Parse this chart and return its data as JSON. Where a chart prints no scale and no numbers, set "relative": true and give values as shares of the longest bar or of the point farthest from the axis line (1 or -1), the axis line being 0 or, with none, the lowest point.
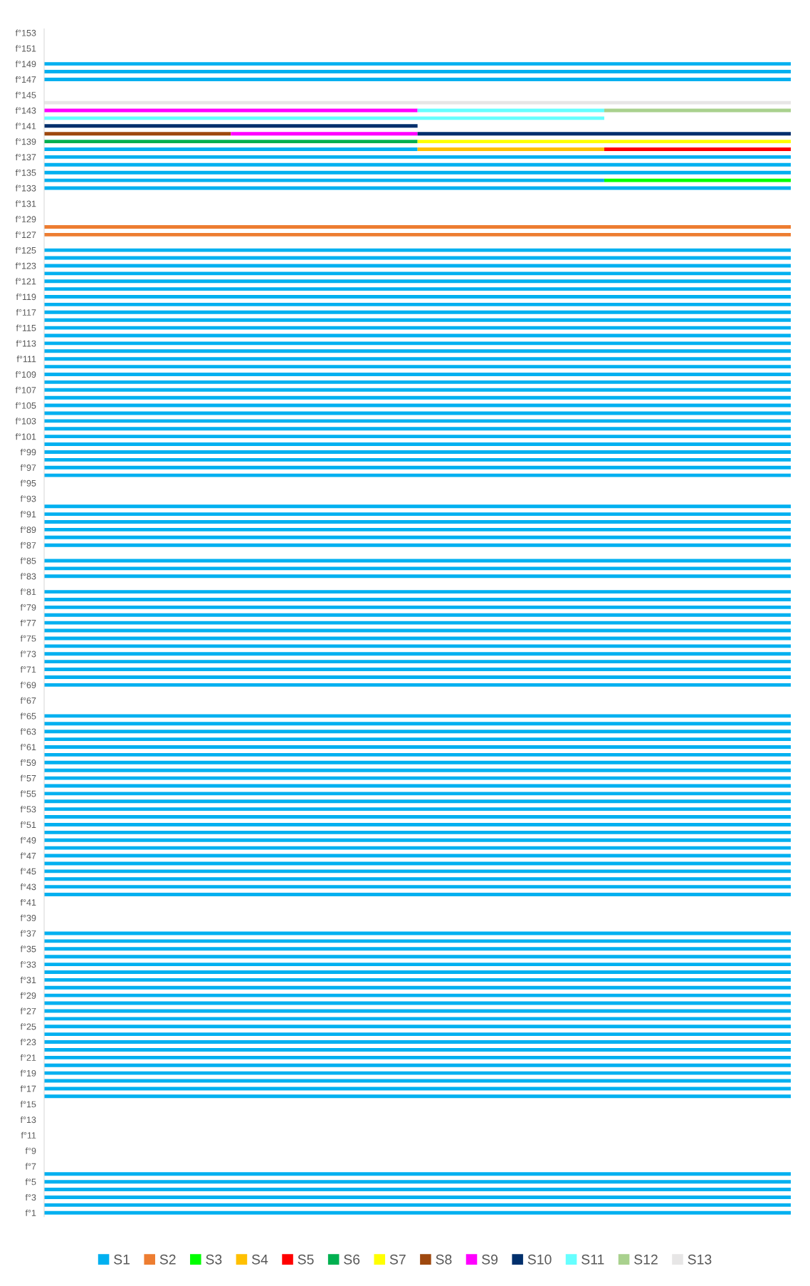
{
  "chart_data": {
    "type": "bar",
    "orientation": "horizontal",
    "stacked": true,
    "relative": true,
    "legend": "bottom",
    "grid": false,
    "categories": [
      "f°153",
      null,
      "f°151",
      null,
      "f°149",
      null,
      "f°147",
      null,
      "f°145",
      null,
      "f°143",
      null,
      "f°141",
      null,
      "f°139",
      null,
      "f°137",
      null,
      "f°135",
      null,
      "f°133",
      null,
      "f°131",
      null,
      "f°129",
      null,
      "f°127",
      null,
      "f°125",
      null,
      "f°123",
      null,
      "f°121",
      null,
      "f°119",
      null,
      "f°117",
      null,
      "f°115",
      null,
      "f°113",
      null,
      "f°111",
      null,
      "f°109",
      null,
      "f°107",
      null,
      "f°105",
      null,
      "f°103",
      null,
      "f°101",
      null,
      "f°99",
      null,
      "f°97",
      null,
      "f°95",
      null,
      "f°93",
      null,
      "f°91",
      null,
      "f°89",
      null,
      "f°87",
      null,
      "f°85",
      null,
      "f°83",
      null,
      "f°81",
      null,
      "f°79",
      null,
      "f°77",
      null,
      "f°75",
      null,
      "f°73",
      null,
      "f°71",
      null,
      "f°69",
      null,
      "f°67",
      null,
      "f°65",
      null,
      "f°63",
      null,
      "f°61",
      null,
      "f°59",
      null,
      "f°57",
      null,
      "f°55",
      null,
      "f°53",
      null,
      "f°51",
      null,
      "f°49",
      null,
      "f°47",
      null,
      "f°45",
      null,
      "f°43",
      null,
      "f°41",
      null,
      "f°39",
      null,
      "f°37",
      null,
      "f°35",
      null,
      "f°33",
      null,
      "f°31",
      null,
      "f°29",
      null,
      "f°27",
      null,
      "f°25",
      null,
      "f°23",
      null,
      "f°21",
      null,
      "f°19",
      null,
      "f°17",
      null,
      "f°15",
      null,
      "f°13",
      null,
      "f°11",
      null,
      "f°9",
      null,
      "f°7",
      null,
      "f°5",
      null,
      "f°3",
      null,
      "f°1"
    ],
    "series": [
      {
        "name": "S1",
        "color": "#00b0f0",
        "values": [
          null,
          null,
          null,
          null,
          1,
          1,
          1,
          null,
          null,
          null,
          null,
          null,
          null,
          null,
          null,
          0.5,
          1,
          1,
          1,
          0.75,
          1,
          null,
          null,
          null,
          null,
          null,
          null,
          null,
          1,
          1,
          1,
          1,
          1,
          1,
          1,
          1,
          1,
          1,
          1,
          1,
          1,
          1,
          1,
          1,
          1,
          1,
          1,
          1,
          1,
          1,
          1,
          1,
          1,
          1,
          1,
          1,
          1,
          1,
          null,
          null,
          null,
          1,
          1,
          1,
          1,
          1,
          1,
          null,
          1,
          1,
          1,
          null,
          1,
          1,
          1,
          1,
          1,
          1,
          1,
          1,
          1,
          1,
          1,
          1,
          1,
          null,
          null,
          null,
          1,
          1,
          1,
          1,
          1,
          1,
          1,
          1,
          1,
          1,
          1,
          1,
          1,
          1,
          1,
          1,
          1,
          1,
          1,
          1,
          1,
          1,
          1,
          1,
          null,
          null,
          null,
          null,
          1,
          1,
          1,
          1,
          1,
          1,
          1,
          1,
          1,
          1,
          1,
          1,
          1,
          1,
          1,
          1,
          1,
          1,
          1,
          1,
          1,
          1,
          null,
          null,
          null,
          null,
          null,
          null,
          null,
          null,
          null,
          1,
          1,
          1,
          1,
          1,
          1
        ]
      },
      {
        "name": "S2",
        "color": "#ed7d31",
        "values": [
          null,
          null,
          null,
          null,
          null,
          null,
          null,
          null,
          null,
          null,
          null,
          null,
          null,
          null,
          null,
          null,
          null,
          null,
          null,
          null,
          null,
          null,
          null,
          null,
          null,
          1,
          1,
          null,
          null,
          null,
          null,
          null,
          null,
          null,
          null,
          null,
          null,
          null,
          null,
          null,
          null,
          null,
          null,
          null,
          null,
          null,
          null,
          null,
          null,
          null,
          null,
          null,
          null,
          null,
          null,
          null,
          null,
          null,
          null,
          null,
          null,
          null,
          null,
          null,
          null,
          null,
          null,
          null,
          null,
          null,
          null,
          null,
          null,
          null,
          null,
          null,
          null,
          null,
          null,
          null,
          null,
          null,
          null,
          null,
          null,
          null,
          null,
          null,
          null,
          null,
          null,
          null,
          null,
          null,
          null,
          null,
          null,
          null,
          null,
          null,
          null,
          null,
          null,
          null,
          null,
          null,
          null,
          null,
          null,
          null,
          null,
          null,
          null,
          null,
          null,
          null,
          null,
          null,
          null,
          null,
          null,
          null,
          null,
          null,
          null,
          null,
          null,
          null,
          null,
          null,
          null,
          null,
          null,
          null,
          null,
          null,
          null,
          null,
          null,
          null,
          null,
          null,
          null,
          null,
          null,
          null,
          null,
          null,
          null,
          null,
          null,
          null,
          null
        ]
      },
      {
        "name": "S3",
        "color": "#00ff00",
        "values": [
          null,
          null,
          null,
          null,
          null,
          null,
          null,
          null,
          null,
          null,
          null,
          null,
          null,
          null,
          null,
          null,
          null,
          null,
          null,
          0.25,
          null,
          null,
          null,
          null,
          null,
          null,
          null,
          null,
          null,
          null,
          null,
          null,
          null,
          null,
          null,
          null,
          null,
          null,
          null,
          null,
          null,
          null,
          null,
          null,
          null,
          null,
          null,
          null,
          null,
          null,
          null,
          null,
          null,
          null,
          null,
          null,
          null,
          null,
          null,
          null,
          null,
          null,
          null,
          null,
          null,
          null,
          null,
          null,
          null,
          null,
          null,
          null,
          null,
          null,
          null,
          null,
          null,
          null,
          null,
          null,
          null,
          null,
          null,
          null,
          null,
          null,
          null,
          null,
          null,
          null,
          null,
          null,
          null,
          null,
          null,
          null,
          null,
          null,
          null,
          null,
          null,
          null,
          null,
          null,
          null,
          null,
          null,
          null,
          null,
          null,
          null,
          null,
          null,
          null,
          null,
          null,
          null,
          null,
          null,
          null,
          null,
          null,
          null,
          null,
          null,
          null,
          null,
          null,
          null,
          null,
          null,
          null,
          null,
          null,
          null,
          null,
          null,
          null,
          null,
          null,
          null,
          null,
          null,
          null,
          null,
          null,
          null,
          null,
          null,
          null,
          null,
          null,
          null
        ]
      },
      {
        "name": "S4",
        "color": "#ffc000",
        "values": [
          null,
          null,
          null,
          null,
          null,
          null,
          null,
          null,
          null,
          null,
          null,
          null,
          null,
          null,
          null,
          0.25,
          null,
          null,
          null,
          null,
          null,
          null,
          null,
          null,
          null,
          null,
          null,
          null,
          null,
          null,
          null,
          null,
          null,
          null,
          null,
          null,
          null,
          null,
          null,
          null,
          null,
          null,
          null,
          null,
          null,
          null,
          null,
          null,
          null,
          null,
          null,
          null,
          null,
          null,
          null,
          null,
          null,
          null,
          null,
          null,
          null,
          null,
          null,
          null,
          null,
          null,
          null,
          null,
          null,
          null,
          null,
          null,
          null,
          null,
          null,
          null,
          null,
          null,
          null,
          null,
          null,
          null,
          null,
          null,
          null,
          null,
          null,
          null,
          null,
          null,
          null,
          null,
          null,
          null,
          null,
          null,
          null,
          null,
          null,
          null,
          null,
          null,
          null,
          null,
          null,
          null,
          null,
          null,
          null,
          null,
          null,
          null,
          null,
          null,
          null,
          null,
          null,
          null,
          null,
          null,
          null,
          null,
          null,
          null,
          null,
          null,
          null,
          null,
          null,
          null,
          null,
          null,
          null,
          null,
          null,
          null,
          null,
          null,
          null,
          null,
          null,
          null,
          null,
          null,
          null,
          null,
          null,
          null,
          null,
          null,
          null,
          null,
          null
        ]
      },
      {
        "name": "S5",
        "color": "#ff0000",
        "values": [
          null,
          null,
          null,
          null,
          null,
          null,
          null,
          null,
          null,
          null,
          null,
          null,
          null,
          null,
          null,
          0.25,
          null,
          null,
          null,
          null,
          null,
          null,
          null,
          null,
          null,
          null,
          null,
          null,
          null,
          null,
          null,
          null,
          null,
          null,
          null,
          null,
          null,
          null,
          null,
          null,
          null,
          null,
          null,
          null,
          null,
          null,
          null,
          null,
          null,
          null,
          null,
          null,
          null,
          null,
          null,
          null,
          null,
          null,
          null,
          null,
          null,
          null,
          null,
          null,
          null,
          null,
          null,
          null,
          null,
          null,
          null,
          null,
          null,
          null,
          null,
          null,
          null,
          null,
          null,
          null,
          null,
          null,
          null,
          null,
          null,
          null,
          null,
          null,
          null,
          null,
          null,
          null,
          null,
          null,
          null,
          null,
          null,
          null,
          null,
          null,
          null,
          null,
          null,
          null,
          null,
          null,
          null,
          null,
          null,
          null,
          null,
          null,
          null,
          null,
          null,
          null,
          null,
          null,
          null,
          null,
          null,
          null,
          null,
          null,
          null,
          null,
          null,
          null,
          null,
          null,
          null,
          null,
          null,
          null,
          null,
          null,
          null,
          null,
          null,
          null,
          null,
          null,
          null,
          null,
          null,
          null,
          null,
          null,
          null,
          null,
          null,
          null,
          null
        ]
      },
      {
        "name": "S6",
        "color": "#00b050",
        "values": [
          null,
          null,
          null,
          null,
          null,
          null,
          null,
          null,
          null,
          null,
          null,
          null,
          null,
          null,
          0.5,
          null,
          null,
          null,
          null,
          null,
          null,
          null,
          null,
          null,
          null,
          null,
          null,
          null,
          null,
          null,
          null,
          null,
          null,
          null,
          null,
          null,
          null,
          null,
          null,
          null,
          null,
          null,
          null,
          null,
          null,
          null,
          null,
          null,
          null,
          null,
          null,
          null,
          null,
          null,
          null,
          null,
          null,
          null,
          null,
          null,
          null,
          null,
          null,
          null,
          null,
          null,
          null,
          null,
          null,
          null,
          null,
          null,
          null,
          null,
          null,
          null,
          null,
          null,
          null,
          null,
          null,
          null,
          null,
          null,
          null,
          null,
          null,
          null,
          null,
          null,
          null,
          null,
          null,
          null,
          null,
          null,
          null,
          null,
          null,
          null,
          null,
          null,
          null,
          null,
          null,
          null,
          null,
          null,
          null,
          null,
          null,
          null,
          null,
          null,
          null,
          null,
          null,
          null,
          null,
          null,
          null,
          null,
          null,
          null,
          null,
          null,
          null,
          null,
          null,
          null,
          null,
          null,
          null,
          null,
          null,
          null,
          null,
          null,
          null,
          null,
          null,
          null,
          null,
          null,
          null,
          null,
          null,
          null,
          null,
          null,
          null,
          null,
          null
        ]
      },
      {
        "name": "S7",
        "color": "#ffff00",
        "values": [
          null,
          null,
          null,
          null,
          null,
          null,
          null,
          null,
          null,
          null,
          null,
          null,
          null,
          null,
          0.5,
          null,
          null,
          null,
          null,
          null,
          null,
          null,
          null,
          null,
          null,
          null,
          null,
          null,
          null,
          null,
          null,
          null,
          null,
          null,
          null,
          null,
          null,
          null,
          null,
          null,
          null,
          null,
          null,
          null,
          null,
          null,
          null,
          null,
          null,
          null,
          null,
          null,
          null,
          null,
          null,
          null,
          null,
          null,
          null,
          null,
          null,
          null,
          null,
          null,
          null,
          null,
          null,
          null,
          null,
          null,
          null,
          null,
          null,
          null,
          null,
          null,
          null,
          null,
          null,
          null,
          null,
          null,
          null,
          null,
          null,
          null,
          null,
          null,
          null,
          null,
          null,
          null,
          null,
          null,
          null,
          null,
          null,
          null,
          null,
          null,
          null,
          null,
          null,
          null,
          null,
          null,
          null,
          null,
          null,
          null,
          null,
          null,
          null,
          null,
          null,
          null,
          null,
          null,
          null,
          null,
          null,
          null,
          null,
          null,
          null,
          null,
          null,
          null,
          null,
          null,
          null,
          null,
          null,
          null,
          null,
          null,
          null,
          null,
          null,
          null,
          null,
          null,
          null,
          null,
          null,
          null,
          null,
          null,
          null,
          null,
          null,
          null,
          null
        ]
      },
      {
        "name": "S8",
        "color": "#9e480e",
        "values": [
          null,
          null,
          null,
          null,
          null,
          null,
          null,
          null,
          null,
          null,
          null,
          null,
          null,
          0.25,
          null,
          null,
          null,
          null,
          null,
          null,
          null,
          null,
          null,
          null,
          null,
          null,
          null,
          null,
          null,
          null,
          null,
          null,
          null,
          null,
          null,
          null,
          null,
          null,
          null,
          null,
          null,
          null,
          null,
          null,
          null,
          null,
          null,
          null,
          null,
          null,
          null,
          null,
          null,
          null,
          null,
          null,
          null,
          null,
          null,
          null,
          null,
          null,
          null,
          null,
          null,
          null,
          null,
          null,
          null,
          null,
          null,
          null,
          null,
          null,
          null,
          null,
          null,
          null,
          null,
          null,
          null,
          null,
          null,
          null,
          null,
          null,
          null,
          null,
          null,
          null,
          null,
          null,
          null,
          null,
          null,
          null,
          null,
          null,
          null,
          null,
          null,
          null,
          null,
          null,
          null,
          null,
          null,
          null,
          null,
          null,
          null,
          null,
          null,
          null,
          null,
          null,
          null,
          null,
          null,
          null,
          null,
          null,
          null,
          null,
          null,
          null,
          null,
          null,
          null,
          null,
          null,
          null,
          null,
          null,
          null,
          null,
          null,
          null,
          null,
          null,
          null,
          null,
          null,
          null,
          null,
          null,
          null,
          null,
          null,
          null,
          null,
          null,
          null
        ]
      },
      {
        "name": "S9",
        "color": "#ff00ff",
        "values": [
          null,
          null,
          null,
          null,
          null,
          null,
          null,
          null,
          null,
          null,
          0.5,
          null,
          null,
          0.25,
          null,
          null,
          null,
          null,
          null,
          null,
          null,
          null,
          null,
          null,
          null,
          null,
          null,
          null,
          null,
          null,
          null,
          null,
          null,
          null,
          null,
          null,
          null,
          null,
          null,
          null,
          null,
          null,
          null,
          null,
          null,
          null,
          null,
          null,
          null,
          null,
          null,
          null,
          null,
          null,
          null,
          null,
          null,
          null,
          null,
          null,
          null,
          null,
          null,
          null,
          null,
          null,
          null,
          null,
          null,
          null,
          null,
          null,
          null,
          null,
          null,
          null,
          null,
          null,
          null,
          null,
          null,
          null,
          null,
          null,
          null,
          null,
          null,
          null,
          null,
          null,
          null,
          null,
          null,
          null,
          null,
          null,
          null,
          null,
          null,
          null,
          null,
          null,
          null,
          null,
          null,
          null,
          null,
          null,
          null,
          null,
          null,
          null,
          null,
          null,
          null,
          null,
          null,
          null,
          null,
          null,
          null,
          null,
          null,
          null,
          null,
          null,
          null,
          null,
          null,
          null,
          null,
          null,
          null,
          null,
          null,
          null,
          null,
          null,
          null,
          null,
          null,
          null,
          null,
          null,
          null,
          null,
          null,
          null,
          null,
          null,
          null,
          null,
          null
        ]
      },
      {
        "name": "S10",
        "color": "#002f6c",
        "values": [
          null,
          null,
          null,
          null,
          null,
          null,
          null,
          null,
          null,
          null,
          null,
          null,
          0.5,
          0.5,
          null,
          null,
          null,
          null,
          null,
          null,
          null,
          null,
          null,
          null,
          null,
          null,
          null,
          null,
          null,
          null,
          null,
          null,
          null,
          null,
          null,
          null,
          null,
          null,
          null,
          null,
          null,
          null,
          null,
          null,
          null,
          null,
          null,
          null,
          null,
          null,
          null,
          null,
          null,
          null,
          null,
          null,
          null,
          null,
          null,
          null,
          null,
          null,
          null,
          null,
          null,
          null,
          null,
          null,
          null,
          null,
          null,
          null,
          null,
          null,
          null,
          null,
          null,
          null,
          null,
          null,
          null,
          null,
          null,
          null,
          null,
          null,
          null,
          null,
          null,
          null,
          null,
          null,
          null,
          null,
          null,
          null,
          null,
          null,
          null,
          null,
          null,
          null,
          null,
          null,
          null,
          null,
          null,
          null,
          null,
          null,
          null,
          null,
          null,
          null,
          null,
          null,
          null,
          null,
          null,
          null,
          null,
          null,
          null,
          null,
          null,
          null,
          null,
          null,
          null,
          null,
          null,
          null,
          null,
          null,
          null,
          null,
          null,
          null,
          null,
          null,
          null,
          null,
          null,
          null,
          null,
          null,
          null,
          null,
          null,
          null,
          null,
          null,
          null
        ]
      },
      {
        "name": "S11",
        "color": "#66ffff",
        "values": [
          null,
          null,
          null,
          null,
          null,
          null,
          null,
          null,
          null,
          null,
          0.25,
          0.75,
          null,
          null,
          null,
          null,
          null,
          null,
          null,
          null,
          null,
          null,
          null,
          null,
          null,
          null,
          null,
          null,
          null,
          null,
          null,
          null,
          null,
          null,
          null,
          null,
          null,
          null,
          null,
          null,
          null,
          null,
          null,
          null,
          null,
          null,
          null,
          null,
          null,
          null,
          null,
          null,
          null,
          null,
          null,
          null,
          null,
          null,
          null,
          null,
          null,
          null,
          null,
          null,
          null,
          null,
          null,
          null,
          null,
          null,
          null,
          null,
          null,
          null,
          null,
          null,
          null,
          null,
          null,
          null,
          null,
          null,
          null,
          null,
          null,
          null,
          null,
          null,
          null,
          null,
          null,
          null,
          null,
          null,
          null,
          null,
          null,
          null,
          null,
          null,
          null,
          null,
          null,
          null,
          null,
          null,
          null,
          null,
          null,
          null,
          null,
          null,
          null,
          null,
          null,
          null,
          null,
          null,
          null,
          null,
          null,
          null,
          null,
          null,
          null,
          null,
          null,
          null,
          null,
          null,
          null,
          null,
          null,
          null,
          null,
          null,
          null,
          null,
          null,
          null,
          null,
          null,
          null,
          null,
          null,
          null,
          null,
          null,
          null,
          null,
          null,
          null,
          null
        ]
      },
      {
        "name": "S12",
        "color": "#a9d18e",
        "values": [
          null,
          null,
          null,
          null,
          null,
          null,
          null,
          null,
          null,
          null,
          0.25,
          null,
          null,
          null,
          null,
          null,
          null,
          null,
          null,
          null,
          null,
          null,
          null,
          null,
          null,
          null,
          null,
          null,
          null,
          null,
          null,
          null,
          null,
          null,
          null,
          null,
          null,
          null,
          null,
          null,
          null,
          null,
          null,
          null,
          null,
          null,
          null,
          null,
          null,
          null,
          null,
          null,
          null,
          null,
          null,
          null,
          null,
          null,
          null,
          null,
          null,
          null,
          null,
          null,
          null,
          null,
          null,
          null,
          null,
          null,
          null,
          null,
          null,
          null,
          null,
          null,
          null,
          null,
          null,
          null,
          null,
          null,
          null,
          null,
          null,
          null,
          null,
          null,
          null,
          null,
          null,
          null,
          null,
          null,
          null,
          null,
          null,
          null,
          null,
          null,
          null,
          null,
          null,
          null,
          null,
          null,
          null,
          null,
          null,
          null,
          null,
          null,
          null,
          null,
          null,
          null,
          null,
          null,
          null,
          null,
          null,
          null,
          null,
          null,
          null,
          null,
          null,
          null,
          null,
          null,
          null,
          null,
          null,
          null,
          null,
          null,
          null,
          null,
          null,
          null,
          null,
          null,
          null,
          null,
          null,
          null,
          null,
          null,
          null,
          null,
          null,
          null,
          null
        ]
      },
      {
        "name": "S13",
        "color": "#e7e6e6",
        "values": [
          null,
          null,
          null,
          null,
          null,
          null,
          null,
          null,
          null,
          1,
          null,
          null,
          null,
          null,
          null,
          null,
          null,
          null,
          null,
          null,
          null,
          null,
          null,
          null,
          null,
          null,
          null,
          null,
          null,
          null,
          null,
          null,
          null,
          null,
          null,
          null,
          null,
          null,
          null,
          null,
          null,
          null,
          null,
          null,
          null,
          null,
          null,
          null,
          null,
          null,
          null,
          null,
          null,
          null,
          null,
          null,
          null,
          null,
          null,
          null,
          null,
          null,
          null,
          null,
          null,
          null,
          null,
          null,
          null,
          null,
          null,
          null,
          null,
          null,
          null,
          null,
          null,
          null,
          null,
          null,
          null,
          null,
          null,
          null,
          null,
          null,
          null,
          null,
          null,
          null,
          null,
          null,
          null,
          null,
          null,
          null,
          null,
          null,
          null,
          null,
          null,
          null,
          null,
          null,
          null,
          null,
          null,
          null,
          null,
          null,
          null,
          null,
          null,
          null,
          null,
          null,
          null,
          null,
          null,
          null,
          null,
          null,
          null,
          null,
          null,
          null,
          null,
          null,
          null,
          null,
          null,
          null,
          null,
          null,
          null,
          null,
          null,
          null,
          null,
          null,
          null,
          null,
          null,
          null,
          null,
          null,
          null,
          null,
          null,
          null,
          null,
          null,
          null
        ]
      }
    ]
  }
}
